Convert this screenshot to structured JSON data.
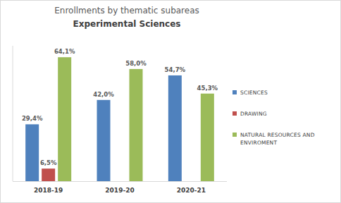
{
  "chart_data": {
    "type": "bar",
    "title": "Enrollments by thematic subareas",
    "subtitle": "Experimental Sciences",
    "categories": [
      "2018-19",
      "2019-20",
      "2020-21"
    ],
    "series": [
      {
        "name": "SCIENCES",
        "color": "#4f81bd",
        "values": [
          29.4,
          42.0,
          54.7
        ],
        "value_labels": [
          "29,4%",
          "42,0%",
          "54,7%"
        ]
      },
      {
        "name": "DRAWING",
        "color": "#c0504d",
        "values": [
          6.5,
          null,
          null
        ],
        "value_labels": [
          "6,5%",
          null,
          null
        ]
      },
      {
        "name": "NATURAL RESOURCES AND ENVIROMENT",
        "color": "#9bbb59",
        "values": [
          64.1,
          58.0,
          45.3
        ],
        "value_labels": [
          "64,1%",
          "58,0%",
          "45,3%"
        ]
      }
    ],
    "ylim": [
      0,
      70
    ],
    "grid": false,
    "legend": "right",
    "data_labels": true,
    "tick_labels": "x"
  }
}
